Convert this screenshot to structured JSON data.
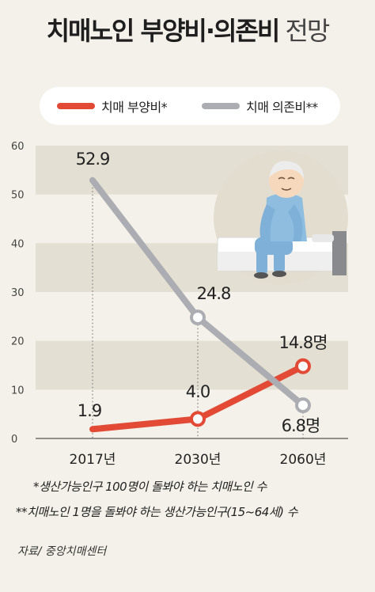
{
  "title": {
    "main": "치매노인 부양비·의존비",
    "sub": "전망"
  },
  "legend": {
    "support": {
      "label": "치매 부양비*",
      "color": "#e24a36"
    },
    "dependency": {
      "label": "치매 의존비**",
      "color": "#acadb2"
    }
  },
  "chart_data": {
    "type": "line",
    "categories": [
      "2017년",
      "2030년",
      "2060년"
    ],
    "ylim": [
      0,
      60
    ],
    "yticks": [
      0,
      10,
      20,
      30,
      40,
      50,
      60
    ],
    "grid": "alternating horizontal bands",
    "series": [
      {
        "name": "치매 부양비*",
        "values": [
          1.9,
          4.0,
          14.8
        ],
        "color": "#e24a36",
        "labels": [
          "1.9",
          "4.0",
          "14.8명"
        ]
      },
      {
        "name": "치매 의존비**",
        "values": [
          52.9,
          24.8,
          6.8
        ],
        "color": "#acadb2",
        "labels": [
          "52.9",
          "24.8",
          "6.8명"
        ]
      }
    ]
  },
  "notes": {
    "note1": "*생산가능인구 100명이 돌봐야 하는 치매노인 수",
    "note2": "**치매노인 1명을 돌봐야 하는 생산가능인구(15~64세) 수"
  },
  "source": "자료/ 중앙치매센터",
  "illustration": {
    "name": "elderly-person-on-bed-illustration"
  }
}
